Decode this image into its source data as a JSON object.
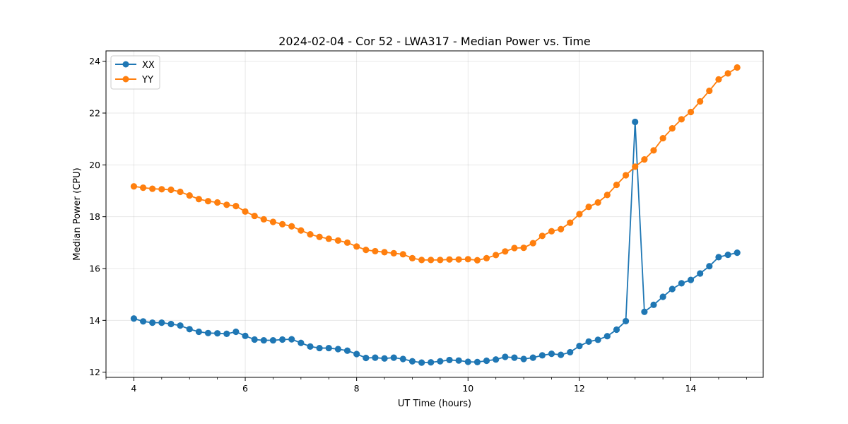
{
  "chart_data": {
    "type": "line",
    "title": "2024-02-04 - Cor 52 - LWA317 - Median Power vs. Time",
    "xlabel": "UT Time (hours)",
    "ylabel": "Median Power (CPU)",
    "xlim": [
      3.5,
      15.3
    ],
    "ylim": [
      11.8,
      24.4
    ],
    "xticks": [
      4,
      6,
      8,
      10,
      12,
      14
    ],
    "xminor_step": 0.5,
    "yticks": [
      12,
      14,
      16,
      18,
      20,
      22,
      24
    ],
    "grid": true,
    "legend_position": "top-left",
    "x": [
      4.0,
      4.167,
      4.333,
      4.5,
      4.667,
      4.833,
      5.0,
      5.167,
      5.333,
      5.5,
      5.667,
      5.833,
      6.0,
      6.167,
      6.333,
      6.5,
      6.667,
      6.833,
      7.0,
      7.167,
      7.333,
      7.5,
      7.667,
      7.833,
      8.0,
      8.167,
      8.333,
      8.5,
      8.667,
      8.833,
      9.0,
      9.167,
      9.333,
      9.5,
      9.667,
      9.833,
      10.0,
      10.167,
      10.333,
      10.5,
      10.667,
      10.833,
      11.0,
      11.167,
      11.333,
      11.5,
      11.667,
      11.833,
      12.0,
      12.167,
      12.333,
      12.5,
      12.667,
      12.833,
      13.0,
      13.167,
      13.333,
      13.5,
      13.667,
      13.833,
      14.0,
      14.167,
      14.333,
      14.5,
      14.667,
      14.833
    ],
    "series": [
      {
        "name": "XX",
        "color": "#1f77b4",
        "values": [
          14.07,
          13.96,
          13.91,
          13.91,
          13.86,
          13.8,
          13.66,
          13.56,
          13.51,
          13.5,
          13.48,
          13.56,
          13.4,
          13.26,
          13.23,
          13.23,
          13.26,
          13.27,
          13.13,
          12.99,
          12.93,
          12.93,
          12.89,
          12.83,
          12.7,
          12.55,
          12.56,
          12.53,
          12.56,
          12.51,
          12.42,
          12.37,
          12.38,
          12.42,
          12.47,
          12.45,
          12.4,
          12.39,
          12.44,
          12.49,
          12.59,
          12.56,
          12.51,
          12.56,
          12.65,
          12.71,
          12.67,
          12.77,
          13.01,
          13.18,
          13.25,
          13.39,
          13.64,
          13.97,
          21.66,
          14.33,
          14.6,
          14.91,
          15.21,
          15.43,
          15.56,
          15.81,
          16.09,
          16.44,
          16.53,
          16.61
        ]
      },
      {
        "name": "YY",
        "color": "#ff7f0e",
        "values": [
          19.17,
          19.12,
          19.08,
          19.06,
          19.04,
          18.96,
          18.82,
          18.68,
          18.6,
          18.55,
          18.46,
          18.41,
          18.2,
          18.03,
          17.9,
          17.8,
          17.71,
          17.63,
          17.47,
          17.32,
          17.22,
          17.15,
          17.08,
          17.0,
          16.85,
          16.72,
          16.67,
          16.63,
          16.59,
          16.55,
          16.4,
          16.33,
          16.33,
          16.33,
          16.35,
          16.35,
          16.36,
          16.32,
          16.4,
          16.52,
          16.66,
          16.79,
          16.8,
          16.98,
          17.26,
          17.44,
          17.52,
          17.77,
          18.1,
          18.38,
          18.55,
          18.84,
          19.23,
          19.6,
          19.93,
          20.21,
          20.56,
          21.03,
          21.41,
          21.76,
          22.04,
          22.45,
          22.86,
          23.3,
          23.53,
          23.76
        ]
      }
    ]
  }
}
